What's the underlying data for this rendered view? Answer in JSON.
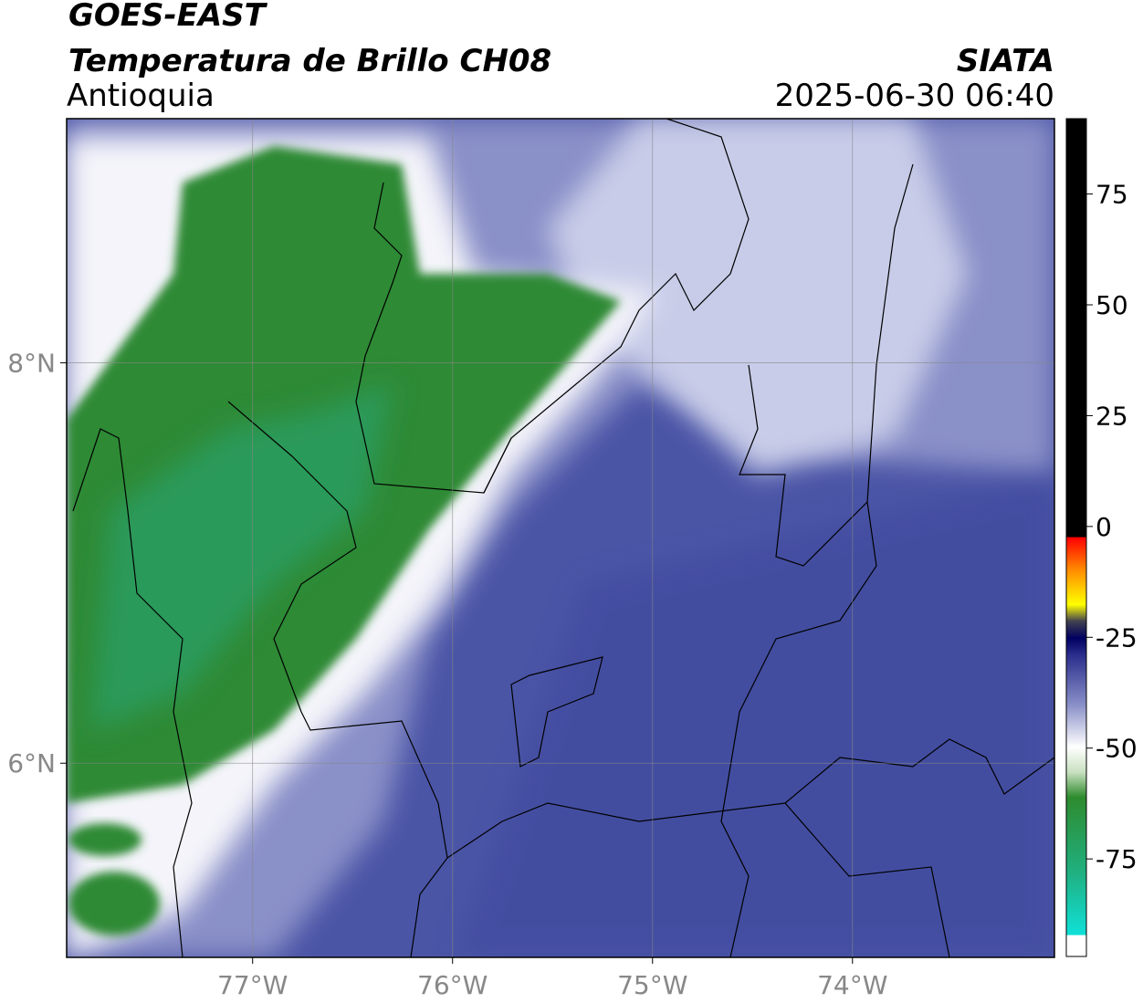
{
  "header": {
    "title": "GOES-EAST",
    "subtitle": "Temperatura de Brillo CH08",
    "region": "Antioquia",
    "source": "SIATA",
    "timestamp": "2025-06-30 06:40"
  },
  "map": {
    "xlim": [
      -77.93,
      -72.99
    ],
    "ylim": [
      5.03,
      9.22
    ],
    "xticks": [
      {
        "value": -77,
        "label": "77°W"
      },
      {
        "value": -76,
        "label": "76°W"
      },
      {
        "value": -75,
        "label": "75°W"
      },
      {
        "value": -74,
        "label": "74°W"
      }
    ],
    "yticks": [
      {
        "value": 8,
        "label": "8°N"
      },
      {
        "value": 6,
        "label": "6°N"
      }
    ],
    "colorbar": {
      "clim": [
        -97,
        92
      ],
      "ticks": [
        75,
        50,
        25,
        0,
        -25,
        -50,
        -75
      ]
    }
  }
}
